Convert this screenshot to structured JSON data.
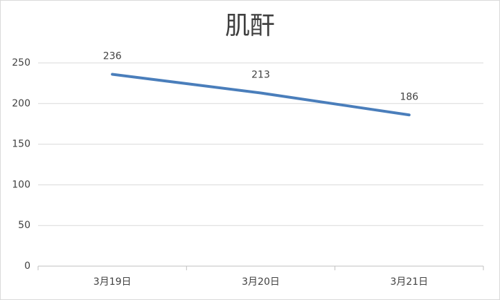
{
  "chart_data": {
    "type": "line",
    "title": "肌酐",
    "categories": [
      "3月19日",
      "3月20日",
      "3月21日"
    ],
    "series": [
      {
        "name": "肌酐",
        "color": "#4a7ebb",
        "values": [
          236,
          213,
          186
        ]
      }
    ],
    "ylim": [
      0,
      250
    ],
    "yticks": [
      0,
      50,
      100,
      150,
      200,
      250
    ],
    "grid": true,
    "data_labels": true
  }
}
